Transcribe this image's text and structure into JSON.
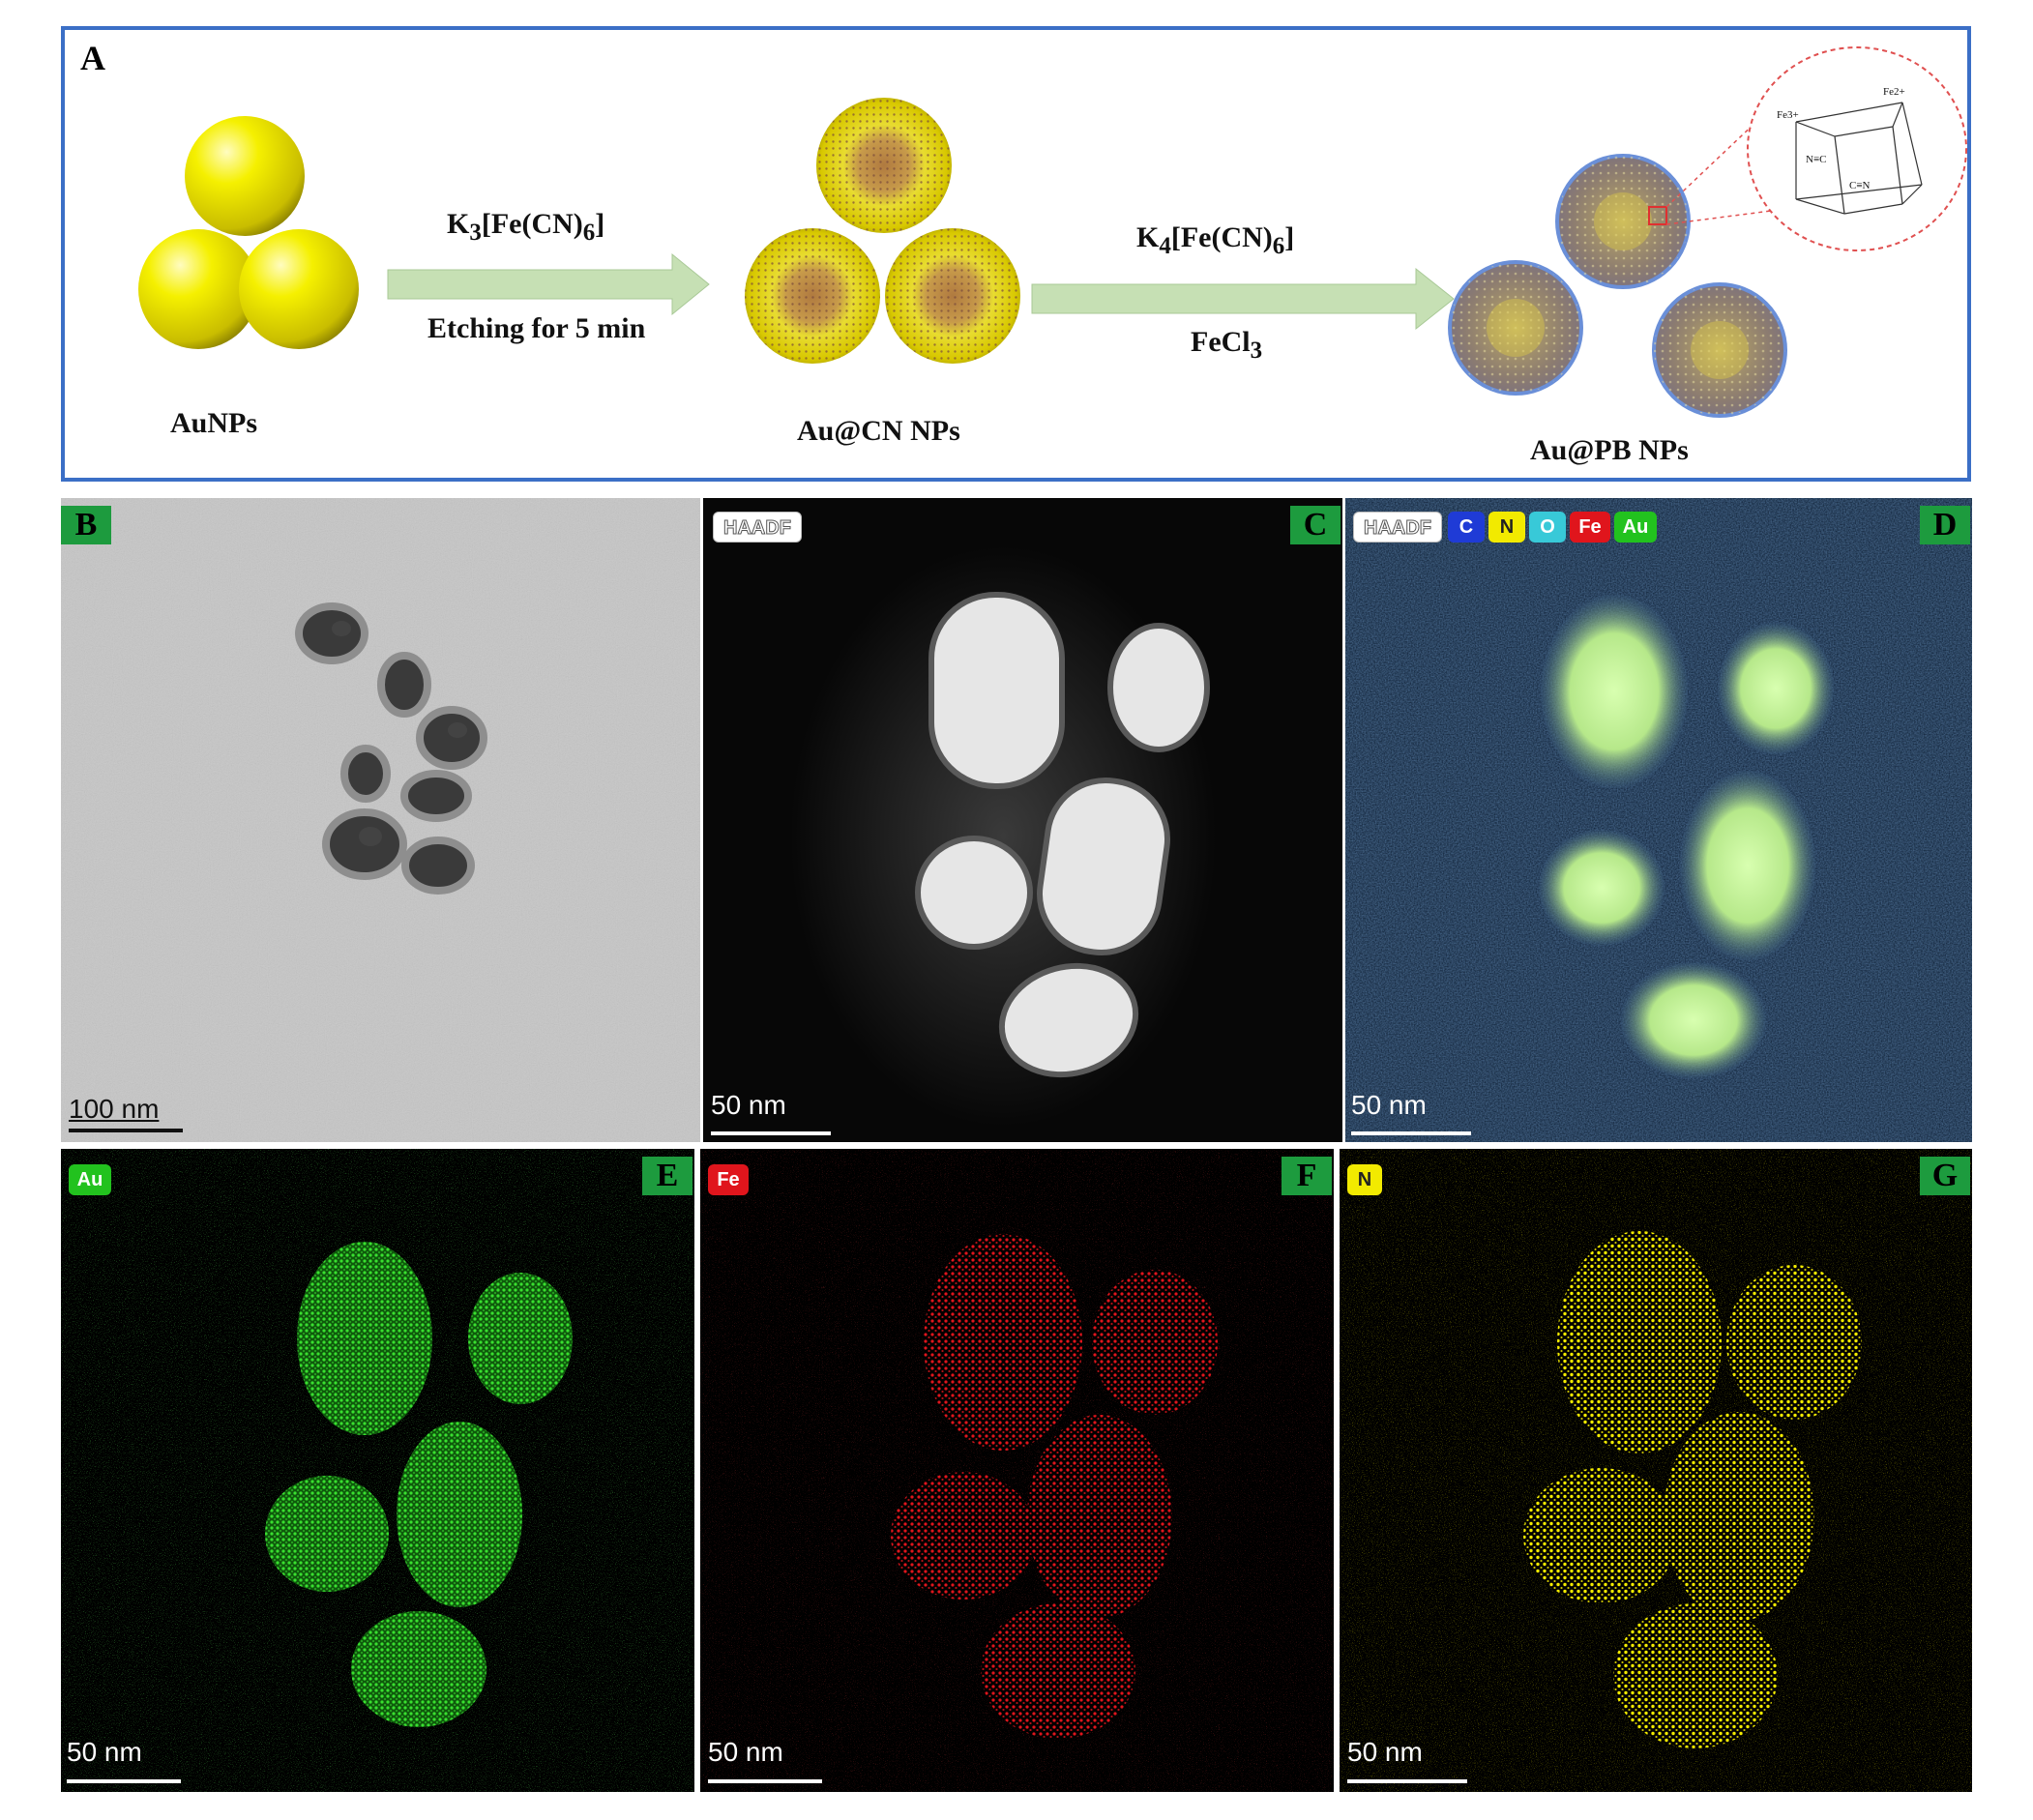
{
  "panel_a": {
    "label": "A",
    "reagent1": "K3[Fe(CN)6]",
    "step1": "Etching for 5 min",
    "reagent2": "K4[Fe(CN)6]",
    "reagent3": "FeCl3",
    "caption1": "AuNPs",
    "caption2": "Au@CN NPs",
    "caption3": "Au@PB NPs",
    "lattice_labels": [
      "Fe3+",
      "Fe2+",
      "C≡N",
      "N≡C"
    ]
  },
  "panels": [
    {
      "label": "B",
      "tags": [],
      "scale_bar": "100 nm",
      "description_kind": "tem"
    },
    {
      "label": "C",
      "tags": [
        "HAADF"
      ],
      "scale_bar": "50 nm"
    },
    {
      "label": "D",
      "tags": [
        "HAADF",
        "C",
        "N",
        "O",
        "Fe",
        "Au"
      ],
      "scale_bar": "50 nm"
    },
    {
      "label": "E",
      "tags": [
        "Au"
      ],
      "scale_bar": "50 nm"
    },
    {
      "label": "F",
      "tags": [
        "Fe"
      ],
      "scale_bar": "50 nm"
    },
    {
      "label": "G",
      "tags": [
        "N"
      ],
      "scale_bar": "50 nm"
    }
  ],
  "colors": {
    "frame_blue": "#3b6fc6",
    "label_green": "#1d9b3e",
    "gold": "#e8e000",
    "arrow_green": "#c6e0b4",
    "C": "#1f3bd6",
    "N": "#f2ea00",
    "O": "#38c9d8",
    "Fe": "#e0151c",
    "Au": "#22c21e"
  }
}
